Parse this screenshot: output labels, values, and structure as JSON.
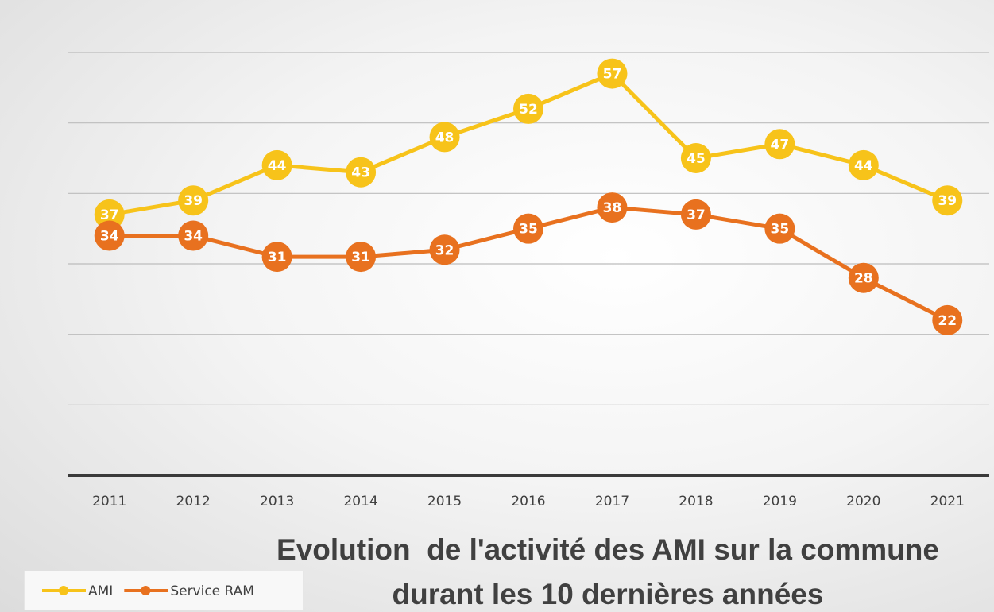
{
  "chart_data": {
    "type": "line",
    "title": [
      "Evolution  de l'activité des AMI sur la commune",
      "durant les 10 dernières années"
    ],
    "categories": [
      "2011",
      "2012",
      "2013",
      "2014",
      "2015",
      "2016",
      "2017",
      "2018",
      "2019",
      "2020",
      "2021"
    ],
    "series": [
      {
        "name": "AMI",
        "color": "#f7c31a",
        "values": [
          37,
          39,
          44,
          43,
          48,
          52,
          57,
          45,
          47,
          44,
          39
        ]
      },
      {
        "name": "Service RAM",
        "color": "#e8711f",
        "values": [
          34,
          34,
          31,
          31,
          32,
          35,
          38,
          37,
          35,
          28,
          22
        ]
      }
    ],
    "ylim": [
      0,
      60
    ],
    "yticks": [
      0,
      10,
      20,
      30,
      40,
      50,
      60
    ],
    "grid": true,
    "legend": "bottom-left"
  }
}
